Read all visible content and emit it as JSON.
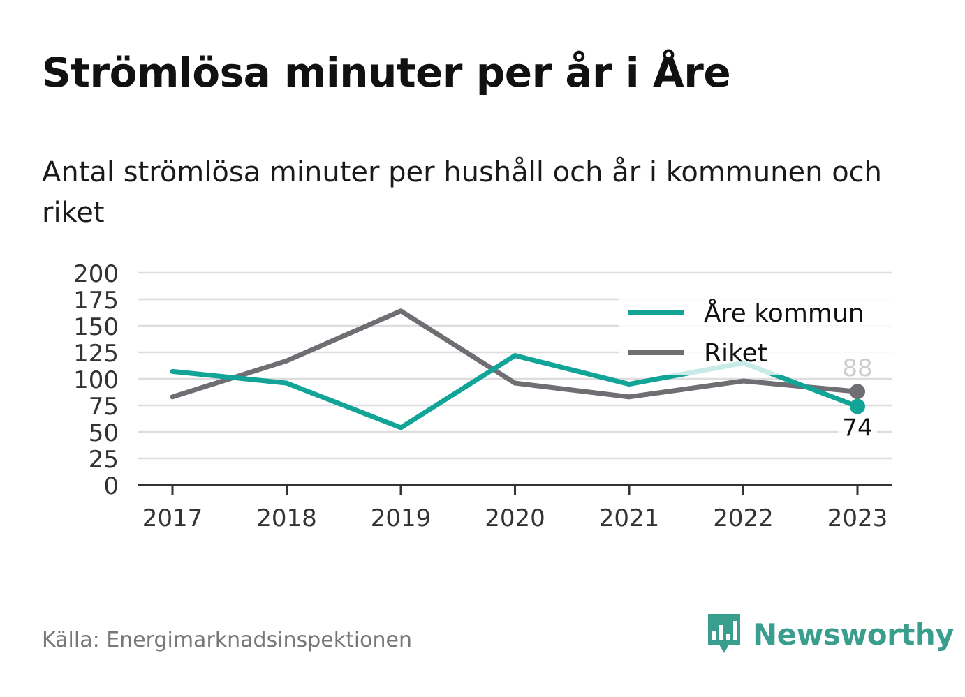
{
  "header": {
    "title": "Strömlösa minuter per år i Åre",
    "subtitle": "Antal strömlösa minuter per hushåll och år i kommunen och riket"
  },
  "footer": {
    "source": "Källa: Energimarknadsinspektionen",
    "brand": "Newsworthy",
    "brand_icon": "bar-chart-speech-bubble-icon"
  },
  "colors": {
    "are": "#12a497",
    "riket": "#6e6e73",
    "are_faded": "#c9ebe7",
    "grid": "#dddddd",
    "axis": "#333333"
  },
  "chart_data": {
    "type": "line",
    "x": [
      "2017",
      "2018",
      "2019",
      "2020",
      "2021",
      "2022",
      "2023"
    ],
    "yticks": [
      "0",
      "25",
      "50",
      "75",
      "100",
      "125",
      "150",
      "175",
      "200"
    ],
    "ylim": [
      0,
      200
    ],
    "grid": true,
    "legend_position": "top-right",
    "series": [
      {
        "name": "Åre kommun",
        "color": "#12a497",
        "values": [
          107,
          96,
          54,
          122,
          95,
          115,
          74
        ],
        "end_label": "74"
      },
      {
        "name": "Riket",
        "color": "#6e6e73",
        "values": [
          83,
          117,
          164,
          96,
          83,
          98,
          88
        ],
        "end_label": "88"
      }
    ]
  }
}
